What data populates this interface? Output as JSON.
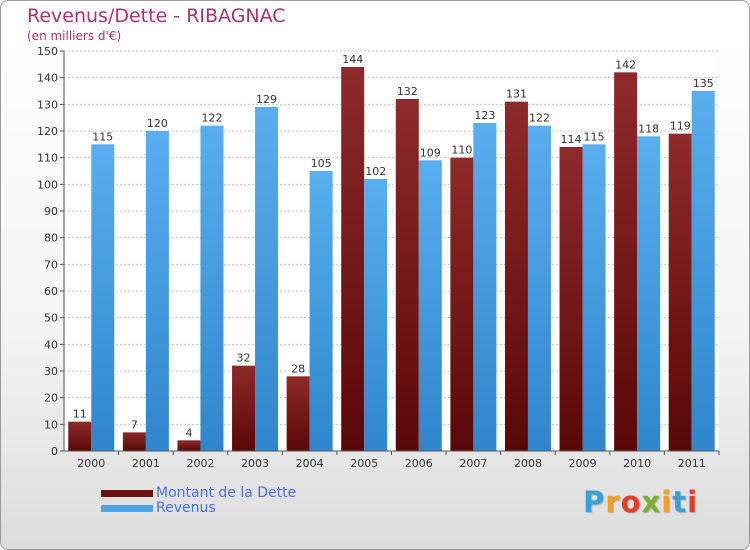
{
  "title": "Revenus/Dette - RIBAGNAC",
  "subtitle": "(en milliers d'€)",
  "logo": {
    "text": "Proxiti",
    "letters": [
      "P",
      "r",
      "o",
      "x",
      "i",
      "t",
      "i"
    ],
    "letter_colors": [
      "#3aa0d8",
      "#f0a020",
      "#e0402a",
      "#7ab030",
      "#f0a020",
      "#3aa0d8",
      "#e0402a"
    ]
  },
  "colors": {
    "dette": "#7a1c1c",
    "revenus": "#4ea6e8",
    "grid": "#c8c8c8",
    "title": "#b0306a",
    "legend_text": "#4a6fe0"
  },
  "legend": [
    {
      "label": "Montant de la Dette",
      "color": "#6b0f0f"
    },
    {
      "label": "Revenus",
      "color": "#4ea6e8"
    }
  ],
  "chart_data": {
    "type": "bar",
    "title": "Revenus/Dette - RIBAGNAC",
    "ylabel": "(en milliers d'€)",
    "xlabel": "",
    "categories": [
      "2000",
      "2001",
      "2002",
      "2003",
      "2004",
      "2005",
      "2006",
      "2007",
      "2008",
      "2009",
      "2010",
      "2011"
    ],
    "series": [
      {
        "name": "Montant de la Dette",
        "values": [
          11,
          7,
          4,
          32,
          28,
          144,
          132,
          110,
          131,
          114,
          142,
          119
        ]
      },
      {
        "name": "Revenus",
        "values": [
          115,
          120,
          122,
          129,
          105,
          102,
          109,
          123,
          122,
          115,
          118,
          135
        ]
      }
    ],
    "ylim": [
      0,
      150
    ],
    "yticks": [
      0,
      10,
      20,
      30,
      40,
      50,
      60,
      70,
      80,
      90,
      100,
      110,
      120,
      130,
      140,
      150
    ],
    "grid": true,
    "legend_position": "bottom-left"
  }
}
